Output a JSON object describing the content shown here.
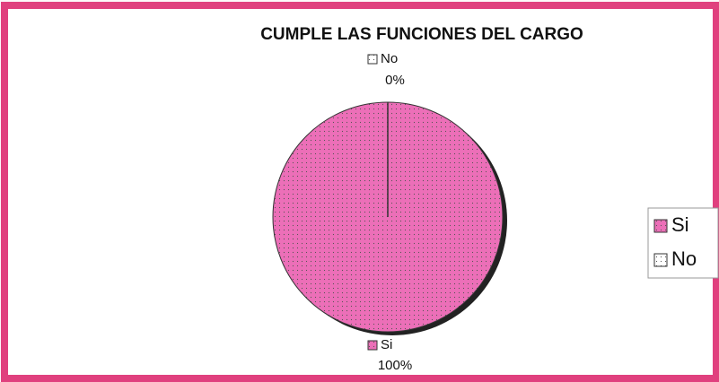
{
  "chart_data": {
    "type": "pie",
    "title": "CUMPLE LAS FUNCIONES DEL CARGO",
    "categories": [
      "Si",
      "No"
    ],
    "values": [
      100,
      0
    ],
    "value_labels": [
      "100%",
      "0%"
    ],
    "colors": [
      "#ec6fb8",
      "#ffffff"
    ],
    "legend": "right"
  }
}
